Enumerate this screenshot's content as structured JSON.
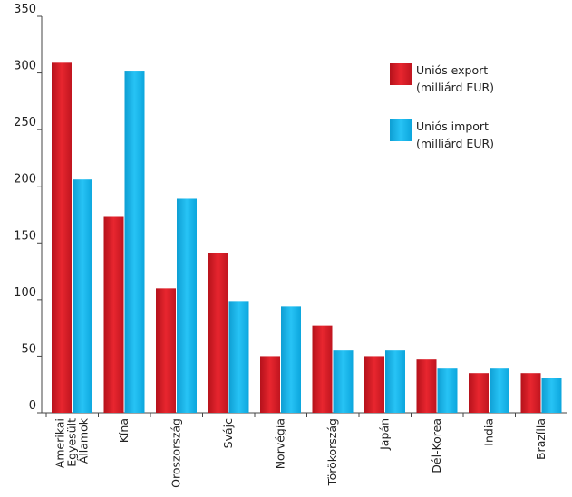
{
  "chart_data": {
    "type": "bar",
    "categories": [
      [
        "Amerikai",
        "Egyesült",
        "Államok"
      ],
      [
        "Kína"
      ],
      [
        "Oroszország"
      ],
      [
        "Svájc"
      ],
      [
        "Norvégia"
      ],
      [
        "Törökország"
      ],
      [
        "Japán"
      ],
      [
        "Dél-Korea"
      ],
      [
        "India"
      ],
      [
        "Brazília"
      ]
    ],
    "series": [
      {
        "name_lines": [
          "Uniós export",
          "(milliárd EUR)"
        ],
        "color": "#d9202b",
        "values": [
          309,
          173,
          110,
          141,
          50,
          77,
          50,
          47,
          35,
          35
        ]
      },
      {
        "name_lines": [
          "Uniós import",
          "(milliárd EUR)"
        ],
        "color": "#13b4ec",
        "values": [
          206,
          302,
          189,
          98,
          94,
          55,
          55,
          39,
          39,
          31
        ]
      }
    ],
    "ylim": [
      0,
      350
    ],
    "yticks": [
      0,
      50,
      100,
      150,
      200,
      250,
      300,
      350
    ],
    "legend_position": "top-right",
    "grid": false
  }
}
